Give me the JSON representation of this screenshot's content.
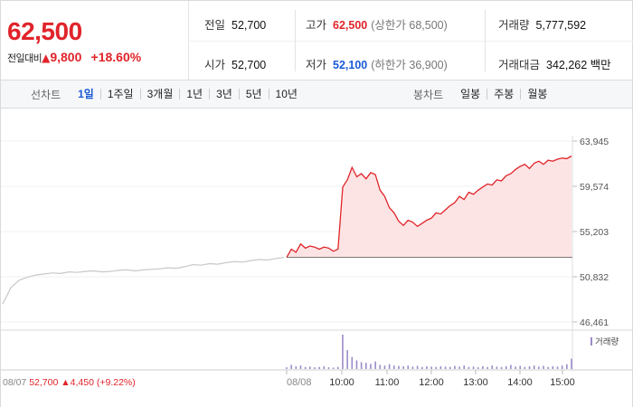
{
  "quote": {
    "price": "62,500",
    "change_label": "전일대비",
    "change_arrow": "▲",
    "change_amount": "9,800",
    "change_percent": "+18.60%",
    "stats": {
      "prev_close_label": "전일",
      "prev_close": "52,700",
      "open_label": "시가",
      "open": "52,700",
      "high_label": "고가",
      "high": "62,500",
      "upper_limit": "(상한가 68,500)",
      "low_label": "저가",
      "low": "52,100",
      "lower_limit": "(하한가 36,900)",
      "volume_label": "거래량",
      "volume": "5,777,592",
      "value_label": "거래대금",
      "value": "342,262 백만"
    }
  },
  "tabs": {
    "line_label": "선차트",
    "line_periods": [
      "1일",
      "1주일",
      "3개월",
      "1년",
      "3년",
      "5년",
      "10년"
    ],
    "active": "1일",
    "candle_label": "봉차트",
    "candle_periods": [
      "일봉",
      "주봉",
      "월봉"
    ]
  },
  "colors": {
    "up": "#e0242a",
    "down": "#1a5bd6",
    "prev_line": "#c8c8c8",
    "area_fill": "#fde4e4",
    "volume": "#9b8bc9"
  },
  "chart_data": {
    "type": "line",
    "y_ticks": [
      "63,945",
      "59,574",
      "55,203",
      "50,832",
      "46,461"
    ],
    "y_tick_values": [
      63945,
      59574,
      55203,
      50832,
      46461
    ],
    "ylim": [
      46461,
      63945
    ],
    "baseline": 52700,
    "x_ticks": [
      "08/08",
      "10:00",
      "11:00",
      "12:00",
      "13:00",
      "14:00",
      "15:00"
    ],
    "volume_label": "거래량",
    "prev_day": {
      "date": "08/07",
      "close": "52,700",
      "arrow": "▲",
      "change": "4,450",
      "change_pct": "(+9.22%)"
    },
    "series": [
      {
        "name": "08/07",
        "y": [
          48200,
          49800,
          50500,
          50800,
          51000,
          51100,
          51200,
          51150,
          51300,
          51250,
          51350,
          51400,
          51300,
          51350,
          51450,
          51500,
          51400,
          51500,
          51550,
          51600,
          51700,
          51650,
          51800,
          52000,
          51950,
          52100,
          52050,
          52200,
          52300,
          52250,
          52400,
          52500,
          52450,
          52600,
          52700
        ]
      },
      {
        "name": "08/08",
        "y": [
          52700,
          53500,
          53200,
          54000,
          53600,
          53800,
          53700,
          53500,
          53700,
          53600,
          53300,
          53500,
          59500,
          60200,
          61400,
          60500,
          60800,
          60300,
          60900,
          60700,
          59200,
          58600,
          57500,
          57000,
          56200,
          55800,
          56300,
          56100,
          55700,
          56000,
          56300,
          56500,
          57000,
          56900,
          57300,
          57700,
          58000,
          58600,
          58300,
          59000,
          58800,
          59200,
          59500,
          59800,
          59700,
          60200,
          60100,
          60600,
          60800,
          61200,
          61500,
          61700,
          61300,
          61800,
          62000,
          61700,
          62100,
          62000,
          62200,
          62300,
          62250,
          62500
        ]
      }
    ],
    "volume_rel": [
      0.05,
      0.12,
      0.08,
      0.1,
      0.06,
      0.07,
      0.05,
      0.06,
      0.08,
      0.05,
      0.04,
      0.06,
      1.0,
      0.55,
      0.35,
      0.25,
      0.2,
      0.18,
      0.15,
      0.22,
      0.12,
      0.1,
      0.14,
      0.1,
      0.09,
      0.08,
      0.1,
      0.07,
      0.09,
      0.06,
      0.08,
      0.07,
      0.06,
      0.08,
      0.07,
      0.06,
      0.09,
      0.07,
      0.1,
      0.06,
      0.07,
      0.05,
      0.08,
      0.06,
      0.1,
      0.07,
      0.06,
      0.08,
      0.12,
      0.07,
      0.09,
      0.06,
      0.08,
      0.1,
      0.07,
      0.09,
      0.06,
      0.08,
      0.07,
      0.1,
      0.14,
      0.3
    ]
  }
}
